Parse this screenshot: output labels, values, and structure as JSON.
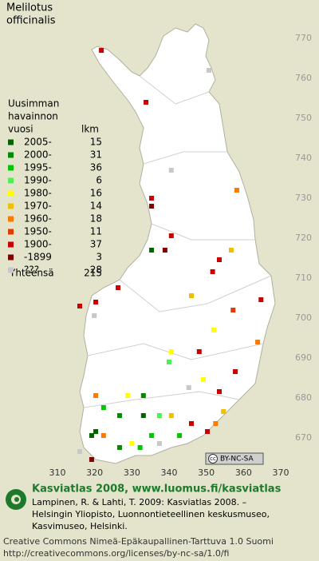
{
  "map": {
    "title": [
      "Melilotus",
      "officinalis"
    ],
    "legend_header": [
      "Uusimman",
      "havainnon",
      "vuosi",
      "lkm"
    ],
    "legend": [
      {
        "label": "2005-",
        "count": 15,
        "color": "#006400",
        "points": [
          [
            335.3,
            717
          ],
          [
            333.1,
            675.6
          ],
          [
            320.3,
            671.6
          ],
          [
            319.2,
            670.6
          ]
        ]
      },
      {
        "label": "2000-",
        "count": 31,
        "color": "#008c00",
        "points": [
          [
            333.1,
            680.6
          ],
          [
            326.7,
            675.6
          ],
          [
            326.7,
            667.6
          ]
        ]
      },
      {
        "label": "1995-",
        "count": 36,
        "color": "#00c800",
        "points": [
          [
            322.4,
            677.6
          ],
          [
            332.2,
            667.6
          ],
          [
            335.3,
            670.6
          ],
          [
            342.8,
            670.6
          ]
        ]
      },
      {
        "label": "1990-",
        "count": 6,
        "color": "#50f050",
        "points": [
          [
            337.4,
            675.6
          ],
          [
            340,
            689
          ]
        ]
      },
      {
        "label": "1980-",
        "count": 16,
        "color": "#ffff00",
        "points": [
          [
            352,
            697
          ],
          [
            340.6,
            691.6
          ],
          [
            349.2,
            684.6
          ],
          [
            328.9,
            680.6
          ],
          [
            330,
            668.6
          ]
        ]
      },
      {
        "label": "1970-",
        "count": 14,
        "color": "#f0c000",
        "points": [
          [
            346,
            705.6
          ],
          [
            356.7,
            717
          ],
          [
            340.6,
            675.6
          ],
          [
            354.6,
            676.6
          ]
        ]
      },
      {
        "label": "1960-",
        "count": 18,
        "color": "#ff7800",
        "points": [
          [
            358.2,
            732
          ],
          [
            363.8,
            694
          ],
          [
            320.3,
            680.6
          ],
          [
            352.5,
            673.6
          ],
          [
            322.4,
            670.6
          ]
        ]
      },
      {
        "label": "1950-",
        "count": 11,
        "color": "#e03c00",
        "points": [
          [
            357.2,
            702
          ]
        ]
      },
      {
        "label": "1900-",
        "count": 37,
        "color": "#c80000",
        "points": [
          [
            321.8,
            767
          ],
          [
            333.8,
            754
          ],
          [
            335.3,
            730
          ],
          [
            340.6,
            720.6
          ],
          [
            353.5,
            714.6
          ],
          [
            351.7,
            711.6
          ],
          [
            326.3,
            707.6
          ],
          [
            320.3,
            704
          ],
          [
            316,
            703
          ],
          [
            364.7,
            704.6
          ],
          [
            348.1,
            691.6
          ],
          [
            357.8,
            686.6
          ],
          [
            353.5,
            681.6
          ],
          [
            346,
            673.6
          ],
          [
            350.3,
            671.6
          ]
        ]
      },
      {
        "label": "-1899",
        "count": 3,
        "color": "#800000",
        "points": [
          [
            335.3,
            728
          ],
          [
            338.9,
            717
          ],
          [
            319.2,
            664.6
          ]
        ]
      },
      {
        "label": "???",
        "count": 28,
        "color": "#c8c8c8",
        "points": [
          [
            350.7,
            762
          ],
          [
            340.6,
            737
          ],
          [
            319.9,
            700.6
          ],
          [
            337.4,
            668.6
          ],
          [
            316,
            666.6
          ],
          [
            345.3,
            682.6
          ]
        ]
      }
    ],
    "total_label": "Yhteensä",
    "total": 215,
    "x_ticks": [
      310,
      320,
      330,
      340,
      350,
      360,
      370
    ],
    "y_ticks": [
      670,
      680,
      690,
      700,
      710,
      720,
      730,
      740,
      750,
      760,
      770
    ],
    "cc_badge": [
      "cc",
      "BY-NC-SA"
    ],
    "footer": {
      "heading": "Kasviatlas 2008, www.luomus.fi/kasviatlas",
      "citation": [
        "Lampinen, R. & Lahti, T. 2009: Kasviatlas 2008. –",
        "Helsingin Yliopisto, Luonnontieteellinen keskusmuseo,",
        "Kasvimuseo, Helsinki."
      ],
      "license": [
        "Creative Commons Nimeä-Epäkaupallinen-Tarttuva 1.0 Suomi",
        "http://creativecommons.org/licenses/by-nc-sa/1.0/fi"
      ]
    }
  }
}
